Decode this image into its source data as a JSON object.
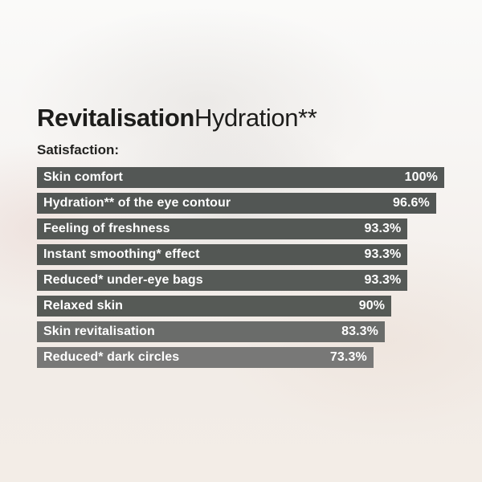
{
  "title": {
    "bold": "Revitalisation",
    "light": "Hydration**"
  },
  "subtitle": "Satisfaction:",
  "colors": {
    "title_text": "#1d1d1b",
    "bar_text": "#ffffff",
    "background_top": "#fafaf9",
    "background_bottom": "#f3ede7"
  },
  "chart_data": {
    "type": "bar",
    "orientation": "horizontal",
    "title": "RevitalisationHydration**",
    "subtitle": "Satisfaction:",
    "xlim": [
      0,
      100
    ],
    "grid": false,
    "legend": false,
    "categories": [
      "Skin comfort",
      "Hydration** of the eye contour",
      "Feeling of freshness",
      "Instant smoothing* effect",
      "Reduced* under-eye bags",
      "Relaxed skin",
      "Skin revitalisation",
      "Reduced* dark circles"
    ],
    "values": [
      100,
      96.6,
      93.3,
      93.3,
      93.3,
      90,
      83.3,
      73.3
    ],
    "bars": [
      {
        "label": "Skin comfort",
        "value": 100,
        "value_label": "100%",
        "width_pct": 100.0,
        "color": "#535755"
      },
      {
        "label": "Hydration** of the eye contour",
        "value": 96.6,
        "value_label": "96.6%",
        "width_pct": 98.0,
        "color": "#525654"
      },
      {
        "label": "Feeling of freshness",
        "value": 93.3,
        "value_label": "93.3%",
        "width_pct": 91.0,
        "color": "#545855"
      },
      {
        "label": "Instant smoothing* effect",
        "value": 93.3,
        "value_label": "93.3%",
        "width_pct": 91.0,
        "color": "#535754"
      },
      {
        "label": "Reduced* under-eye bags",
        "value": 93.3,
        "value_label": "93.3%",
        "width_pct": 91.0,
        "color": "#565a57"
      },
      {
        "label": "Relaxed skin",
        "value": 90,
        "value_label": "90%",
        "width_pct": 87.0,
        "color": "#565a56"
      },
      {
        "label": "Skin revitalisation",
        "value": 83.3,
        "value_label": "83.3%",
        "width_pct": 85.4,
        "color": "#6a6c6a"
      },
      {
        "label": "Reduced* dark circles",
        "value": 73.3,
        "value_label": "73.3%",
        "width_pct": 82.6,
        "color": "#787877"
      }
    ],
    "layout_note": "bar pixel widths as rendered are not strictly proportional to values"
  }
}
